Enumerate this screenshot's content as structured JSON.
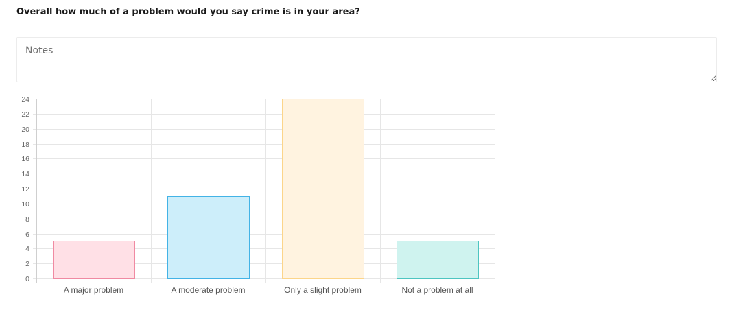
{
  "question": {
    "text": "Overall how much of a problem would you say crime is in your area?"
  },
  "notes": {
    "placeholder": "Notes",
    "value": ""
  },
  "chart_data": {
    "type": "bar",
    "categories": [
      "A major problem",
      "A moderate problem",
      "Only a slight problem",
      "Not a problem at all"
    ],
    "values": [
      5,
      11,
      24,
      5
    ],
    "ylim": [
      0,
      24
    ],
    "yticks": [
      0,
      2,
      4,
      6,
      8,
      10,
      12,
      14,
      16,
      18,
      20,
      22,
      24
    ],
    "grid": true,
    "colors": {
      "fills": [
        "#ffe0e6",
        "#cdeefa",
        "#fff3e0",
        "#cff3ef"
      ],
      "borders": [
        "#f08aa2",
        "#43b3e6",
        "#fcd58a",
        "#4ec5c1"
      ]
    }
  }
}
